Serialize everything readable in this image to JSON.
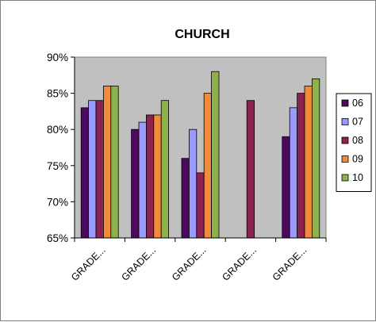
{
  "chart_data": {
    "type": "bar",
    "title": "CHURCH",
    "xlabel": "",
    "ylabel": "",
    "ylim": [
      65,
      90
    ],
    "yticks": [
      65,
      70,
      75,
      80,
      85,
      90
    ],
    "ytick_labels": [
      "65%",
      "70%",
      "75%",
      "80%",
      "85%",
      "90%"
    ],
    "grid": false,
    "plot_background": "#c0c0c0",
    "legend_position": "right",
    "categories": [
      "GRADE...",
      "GRADE...",
      "GRADE...",
      "GRADE...",
      "GRADE..."
    ],
    "series": [
      {
        "name": "06",
        "color": "#4b0a5e",
        "values": [
          83,
          80,
          76,
          null,
          79
        ]
      },
      {
        "name": "07",
        "color": "#9b9bff",
        "values": [
          84,
          81,
          80,
          null,
          83
        ]
      },
      {
        "name": "08",
        "color": "#8b2252",
        "values": [
          84,
          82,
          74,
          84,
          85
        ]
      },
      {
        "name": "09",
        "color": "#f08a3c",
        "values": [
          86,
          82,
          85,
          null,
          86
        ]
      },
      {
        "name": "10",
        "color": "#8db14d",
        "values": [
          86,
          84,
          88,
          null,
          87
        ]
      }
    ]
  }
}
